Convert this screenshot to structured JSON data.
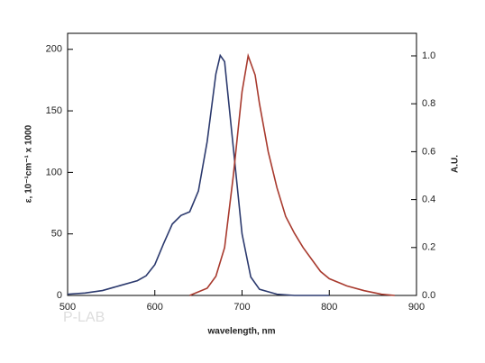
{
  "chart_data": {
    "type": "line",
    "xlabel": "wavelength, nm",
    "ylabel": "ε, 10⁻¹cm⁻¹ x 1000",
    "y2label": "A.U.",
    "watermark": "P-LAB",
    "xlim": [
      500,
      900
    ],
    "xticks": [
      500,
      600,
      700,
      800,
      900
    ],
    "ylim": [
      0,
      213
    ],
    "yticks": [
      0,
      50,
      100,
      150,
      200
    ],
    "y2lim": [
      0,
      1.094
    ],
    "y2ticks": [
      {
        "value": 0,
        "label": "0.0"
      },
      0.2,
      0.4,
      0.6,
      0.8,
      {
        "value": 1,
        "label": "1.0"
      }
    ],
    "series": [
      {
        "color": "#2c3a6e",
        "x": [
          500,
          520,
          540,
          560,
          580,
          590,
          600,
          610,
          620,
          630,
          640,
          650,
          660,
          670,
          675,
          680,
          690,
          700,
          710,
          720,
          740,
          760,
          800
        ],
        "values": [
          1,
          2,
          4,
          8,
          12,
          16,
          25,
          42,
          58,
          65,
          68,
          85,
          125,
          180,
          195,
          190,
          120,
          50,
          15,
          5,
          1,
          0,
          0
        ]
      },
      {
        "color": "#a83a2e",
        "axis": "y2",
        "x": [
          640,
          660,
          670,
          680,
          690,
          700,
          707,
          715,
          720,
          730,
          740,
          750,
          760,
          770,
          780,
          790,
          800,
          820,
          840,
          860,
          875
        ],
        "values": [
          0,
          0.03,
          0.08,
          0.2,
          0.5,
          0.85,
          1.0,
          0.92,
          0.8,
          0.6,
          0.45,
          0.33,
          0.26,
          0.2,
          0.15,
          0.1,
          0.07,
          0.04,
          0.02,
          0.005,
          0
        ]
      }
    ]
  }
}
